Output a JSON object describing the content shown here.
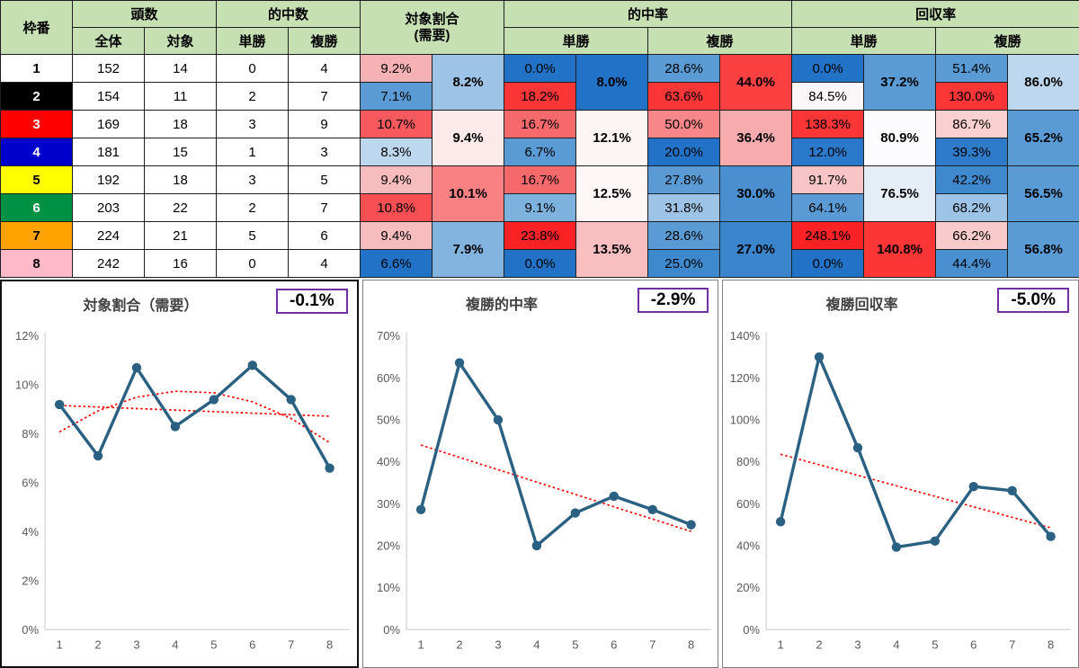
{
  "table": {
    "header": {
      "frame": "枠番",
      "heads": "頭数",
      "hits": "的中数",
      "total": "全体",
      "target": "対象",
      "win": "単勝",
      "place": "複勝",
      "ratio_1": "対象割合",
      "ratio_2": "(需要)",
      "hit_rate": "的中率",
      "payout": "回収率"
    },
    "rows": [
      {
        "frame": "1",
        "frame_bg": "#ffffff",
        "frame_fg": "#000000",
        "total": "152",
        "target": "14",
        "win_hits": "0",
        "place_hits": "4",
        "ratio": {
          "v": "9.2%",
          "c": "#f5b1b3"
        },
        "win_rate": {
          "v": "0.0%",
          "c": "#2273c8"
        },
        "place_rate": {
          "v": "28.6%",
          "c": "#5b9bd5"
        },
        "win_pay": {
          "v": "0.0%",
          "c": "#2273c8"
        },
        "place_pay": {
          "v": "51.4%",
          "c": "#5b9bd5"
        }
      },
      {
        "frame": "2",
        "frame_bg": "#000000",
        "frame_fg": "#ffffff",
        "total": "154",
        "target": "11",
        "win_hits": "2",
        "place_hits": "7",
        "ratio": {
          "v": "7.1%",
          "c": "#5b9bd5"
        },
        "win_rate": {
          "v": "18.2%",
          "c": "#fc3537"
        },
        "place_rate": {
          "v": "63.6%",
          "c": "#fc3537"
        },
        "win_pay": {
          "v": "84.5%",
          "c": "#fbf7f8"
        },
        "place_pay": {
          "v": "130.0%",
          "c": "#fc3537"
        }
      },
      {
        "frame": "3",
        "frame_bg": "#ff0000",
        "frame_fg": "#ffffff",
        "total": "169",
        "target": "18",
        "win_hits": "3",
        "place_hits": "9",
        "ratio": {
          "v": "10.7%",
          "c": "#f8595c"
        },
        "win_rate": {
          "v": "16.7%",
          "c": "#f8696b"
        },
        "place_rate": {
          "v": "50.0%",
          "c": "#f98789"
        },
        "win_pay": {
          "v": "138.3%",
          "c": "#fc3537"
        },
        "place_pay": {
          "v": "86.7%",
          "c": "#fad0d1"
        }
      },
      {
        "frame": "4",
        "frame_bg": "#0000cc",
        "frame_fg": "#ffffff",
        "total": "181",
        "target": "15",
        "win_hits": "1",
        "place_hits": "3",
        "ratio": {
          "v": "8.3%",
          "c": "#bdd7ee"
        },
        "win_rate": {
          "v": "6.7%",
          "c": "#5b9bd5"
        },
        "place_rate": {
          "v": "20.0%",
          "c": "#2273c8"
        },
        "win_pay": {
          "v": "12.0%",
          "c": "#2b79ca"
        },
        "place_pay": {
          "v": "39.3%",
          "c": "#2e7cc9"
        }
      },
      {
        "frame": "5",
        "frame_bg": "#ffff00",
        "frame_fg": "#000000",
        "total": "192",
        "target": "18",
        "win_hits": "3",
        "place_hits": "5",
        "ratio": {
          "v": "9.4%",
          "c": "#f6bcbe"
        },
        "win_rate": {
          "v": "16.7%",
          "c": "#f8696b"
        },
        "place_rate": {
          "v": "27.8%",
          "c": "#5b9bd5"
        },
        "win_pay": {
          "v": "91.7%",
          "c": "#f9c4c5"
        },
        "place_pay": {
          "v": "42.2%",
          "c": "#3e89cd"
        }
      },
      {
        "frame": "6",
        "frame_bg": "#009144",
        "frame_fg": "#ffffff",
        "total": "203",
        "target": "22",
        "win_hits": "2",
        "place_hits": "7",
        "ratio": {
          "v": "10.8%",
          "c": "#f85052"
        },
        "win_rate": {
          "v": "9.1%",
          "c": "#7db1de"
        },
        "place_rate": {
          "v": "31.8%",
          "c": "#9dc3e6"
        },
        "win_pay": {
          "v": "64.1%",
          "c": "#5b9bd5"
        },
        "place_pay": {
          "v": "68.2%",
          "c": "#9dc3e6"
        }
      },
      {
        "frame": "7",
        "frame_bg": "#ffa200",
        "frame_fg": "#000000",
        "total": "224",
        "target": "21",
        "win_hits": "5",
        "place_hits": "6",
        "ratio": {
          "v": "9.4%",
          "c": "#f6bcbe"
        },
        "win_rate": {
          "v": "23.8%",
          "c": "#fb2226"
        },
        "place_rate": {
          "v": "28.6%",
          "c": "#5b9bd5"
        },
        "win_pay": {
          "v": "248.1%",
          "c": "#fb2226"
        },
        "place_pay": {
          "v": "66.2%",
          "c": "#f9caca"
        }
      },
      {
        "frame": "8",
        "frame_bg": "#ffb9c8",
        "frame_fg": "#000000",
        "total": "242",
        "target": "16",
        "win_hits": "0",
        "place_hits": "4",
        "ratio": {
          "v": "6.6%",
          "c": "#2273c8"
        },
        "win_rate": {
          "v": "0.0%",
          "c": "#2273c8"
        },
        "place_rate": {
          "v": "25.0%",
          "c": "#3e89cd"
        },
        "win_pay": {
          "v": "0.0%",
          "c": "#2273c8"
        },
        "place_pay": {
          "v": "44.4%",
          "c": "#4a90d1"
        }
      }
    ],
    "pairs": [
      {
        "ratio": {
          "v": "8.2%",
          "c": "#9dc3e6"
        },
        "win_rate": {
          "v": "8.0%",
          "c": "#2273c8"
        },
        "place_rate": {
          "v": "44.0%",
          "c": "#fb4042"
        },
        "win_pay": {
          "v": "37.2%",
          "c": "#5b9bd5"
        },
        "place_pay": {
          "v": "86.0%",
          "c": "#bdd7ee"
        }
      },
      {
        "ratio": {
          "v": "9.4%",
          "c": "#fceaea"
        },
        "win_rate": {
          "v": "12.1%",
          "c": "#fdf4f4"
        },
        "place_rate": {
          "v": "36.4%",
          "c": "#f7abad"
        },
        "win_pay": {
          "v": "80.9%",
          "c": "#fcfcff"
        },
        "place_pay": {
          "v": "65.2%",
          "c": "#5b9bd5"
        }
      },
      {
        "ratio": {
          "v": "10.1%",
          "c": "#f98183"
        },
        "win_rate": {
          "v": "12.5%",
          "c": "#fdf7f8"
        },
        "place_rate": {
          "v": "30.0%",
          "c": "#4a90d1"
        },
        "win_pay": {
          "v": "76.5%",
          "c": "#e5edf7"
        },
        "place_pay": {
          "v": "56.5%",
          "c": "#5b9bd5"
        }
      },
      {
        "ratio": {
          "v": "7.9%",
          "c": "#83b3df"
        },
        "win_rate": {
          "v": "13.5%",
          "c": "#f9bec0"
        },
        "place_rate": {
          "v": "27.0%",
          "c": "#3a85cb"
        },
        "win_pay": {
          "v": "140.8%",
          "c": "#fc3537"
        },
        "place_pay": {
          "v": "56.8%",
          "c": "#5b9bd5"
        }
      }
    ]
  },
  "chart_data": [
    {
      "type": "line",
      "title": "対象割合（需要）",
      "trend_label": "-0.1%",
      "x": [
        "1",
        "2",
        "3",
        "4",
        "5",
        "6",
        "7",
        "8"
      ],
      "values": [
        9.2,
        7.1,
        10.7,
        8.3,
        9.4,
        10.8,
        9.4,
        6.6
      ],
      "ylim": [
        0,
        12
      ],
      "ytick_values": [
        0,
        2,
        4,
        6,
        8,
        10,
        12
      ],
      "yticks": [
        "0%",
        "2%",
        "4%",
        "6%",
        "8%",
        "10%",
        "12%"
      ],
      "trend_line": [
        9.16,
        8.72
      ],
      "poly_trend": [
        8.08,
        8.94,
        9.5,
        9.74,
        9.68,
        9.31,
        8.63,
        7.64
      ],
      "line_color": "#2a6183",
      "trend_color": "#ff0000",
      "legend": "none",
      "grid": false
    },
    {
      "type": "line",
      "title": "複勝的中率",
      "trend_label": "-2.9%",
      "x": [
        "1",
        "2",
        "3",
        "4",
        "5",
        "6",
        "7",
        "8"
      ],
      "values": [
        28.6,
        63.6,
        50.0,
        20.0,
        27.8,
        31.8,
        28.6,
        25.0
      ],
      "ylim": [
        0,
        70
      ],
      "ytick_values": [
        0,
        10,
        20,
        30,
        40,
        50,
        60,
        70
      ],
      "yticks": [
        "0%",
        "10%",
        "20%",
        "30%",
        "40%",
        "50%",
        "60%",
        "70%"
      ],
      "trend_line": [
        44.0,
        23.4
      ],
      "line_color": "#2a6183",
      "trend_color": "#ff0000",
      "legend": "none",
      "grid": false
    },
    {
      "type": "line",
      "title": "複勝回収率",
      "trend_label": "-5.0%",
      "x": [
        "1",
        "2",
        "3",
        "4",
        "5",
        "6",
        "7",
        "8"
      ],
      "values": [
        51.4,
        130.0,
        86.7,
        39.3,
        42.2,
        68.2,
        66.2,
        44.4
      ],
      "ylim": [
        0,
        140
      ],
      "ytick_values": [
        0,
        20,
        40,
        60,
        80,
        100,
        120,
        140
      ],
      "yticks": [
        "0%",
        "20%",
        "40%",
        "60%",
        "80%",
        "100%",
        "120%",
        "140%"
      ],
      "trend_line": [
        83.6,
        48.5
      ],
      "line_color": "#2a6183",
      "trend_color": "#ff0000",
      "legend": "none",
      "grid": false
    }
  ]
}
